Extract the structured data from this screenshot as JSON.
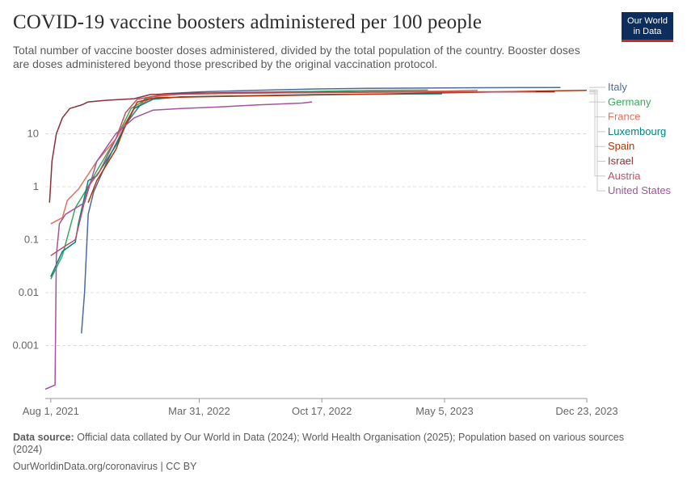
{
  "header": {
    "title": "COVID-19 vaccine boosters administered per 100 people",
    "subtitle": "Total number of vaccine booster doses administered, divided by the total population of the country. Booster doses are doses administered beyond those prescribed by the original vaccination protocol.",
    "logo_line1": "Our World",
    "logo_line2": "in Data"
  },
  "footer": {
    "source_label": "Data source:",
    "source_text": "Official data collated by Our World in Data (2024); World Health Organisation (2025); Population based on various sources (2024)",
    "url_text": "OurWorldinData.org/coronavirus | CC BY"
  },
  "chart_data": {
    "type": "line",
    "title": "COVID-19 vaccine boosters administered per 100 people",
    "y_scale": "log",
    "ylim": [
      0.0001,
      100
    ],
    "y_ticks": [
      {
        "value": 0.001,
        "label": "0.001"
      },
      {
        "value": 0.01,
        "label": "0.01"
      },
      {
        "value": 0.1,
        "label": "0.1"
      },
      {
        "value": 1,
        "label": "1"
      },
      {
        "value": 10,
        "label": "10"
      }
    ],
    "x_ticks": [
      {
        "date": "2021-08-01",
        "label": "Aug 1, 2021"
      },
      {
        "date": "2022-03-31",
        "label": "Mar 31, 2022"
      },
      {
        "date": "2022-10-17",
        "label": "Oct 17, 2022"
      },
      {
        "date": "2023-05-05",
        "label": "May 5, 2023"
      },
      {
        "date": "2023-12-23",
        "label": "Dec 23, 2023"
      }
    ],
    "xlim": [
      "2021-07-23",
      "2023-12-23"
    ],
    "grid": true,
    "legend_placement": "right",
    "series": [
      {
        "name": "Italy",
        "color": "#4c6a9c",
        "points": [
          [
            "2021-09-20",
            0.0017
          ],
          [
            "2021-09-25",
            0.01
          ],
          [
            "2021-10-01",
            0.3
          ],
          [
            "2021-10-10",
            0.8
          ],
          [
            "2021-11-01",
            3
          ],
          [
            "2021-12-01",
            15
          ],
          [
            "2022-01-01",
            45
          ],
          [
            "2022-02-01",
            57
          ],
          [
            "2022-04-01",
            62
          ],
          [
            "2022-07-01",
            66
          ],
          [
            "2022-10-01",
            70
          ],
          [
            "2023-01-01",
            72
          ],
          [
            "2023-06-01",
            74
          ],
          [
            "2023-11-10",
            75
          ]
        ]
      },
      {
        "name": "Germany",
        "color": "#38aa5b",
        "points": [
          [
            "2021-08-01",
            0.018
          ],
          [
            "2021-08-20",
            0.05
          ],
          [
            "2021-09-10",
            0.4
          ],
          [
            "2021-10-01",
            1
          ],
          [
            "2021-10-15",
            2
          ],
          [
            "2021-11-15",
            8
          ],
          [
            "2021-12-10",
            30
          ],
          [
            "2022-01-10",
            50
          ],
          [
            "2022-03-01",
            57
          ],
          [
            "2022-06-01",
            60
          ],
          [
            "2022-10-01",
            63
          ],
          [
            "2023-01-01",
            66
          ],
          [
            "2023-04-08",
            67
          ]
        ]
      },
      {
        "name": "France",
        "color": "#e56e5a",
        "points": [
          [
            "2021-08-01",
            0.2
          ],
          [
            "2021-08-20",
            0.26
          ],
          [
            "2021-08-28",
            0.55
          ],
          [
            "2021-09-15",
            0.9
          ],
          [
            "2021-10-15",
            3
          ],
          [
            "2021-11-15",
            8
          ],
          [
            "2021-12-15",
            30
          ],
          [
            "2022-01-15",
            50
          ],
          [
            "2022-03-01",
            56
          ],
          [
            "2022-06-01",
            58
          ],
          [
            "2022-10-01",
            60
          ],
          [
            "2023-01-01",
            62
          ],
          [
            "2023-05-01",
            64
          ],
          [
            "2023-06-28",
            66
          ]
        ]
      },
      {
        "name": "Luxembourg",
        "color": "#00847e",
        "points": [
          [
            "2021-08-01",
            0.02
          ],
          [
            "2021-08-20",
            0.06
          ],
          [
            "2021-09-10",
            0.09
          ],
          [
            "2021-09-15",
            0.2
          ],
          [
            "2021-10-01",
            1.3
          ],
          [
            "2021-10-15",
            1.6
          ],
          [
            "2021-11-15",
            6
          ],
          [
            "2021-12-15",
            30
          ],
          [
            "2022-01-15",
            45
          ],
          [
            "2022-03-01",
            50
          ],
          [
            "2022-06-01",
            52
          ],
          [
            "2022-10-01",
            55
          ],
          [
            "2023-01-01",
            56
          ],
          [
            "2023-05-01",
            57
          ]
        ]
      },
      {
        "name": "Spain",
        "color": "#b13507",
        "points": [
          [
            "2021-10-01",
            0.5
          ],
          [
            "2021-10-15",
            1.3
          ],
          [
            "2021-11-15",
            5
          ],
          [
            "2021-12-01",
            15
          ],
          [
            "2021-12-20",
            40
          ],
          [
            "2022-01-20",
            48
          ],
          [
            "2022-04-01",
            50
          ],
          [
            "2022-07-01",
            52
          ],
          [
            "2022-10-01",
            54
          ],
          [
            "2023-01-01",
            56
          ],
          [
            "2023-06-01",
            60
          ],
          [
            "2023-10-01",
            64
          ],
          [
            "2023-12-23",
            66
          ]
        ]
      },
      {
        "name": "Israel",
        "color": "#883039",
        "points": [
          [
            "2021-07-30",
            0.5
          ],
          [
            "2021-08-03",
            3
          ],
          [
            "2021-08-10",
            10
          ],
          [
            "2021-08-20",
            20
          ],
          [
            "2021-09-01",
            30
          ],
          [
            "2021-09-20",
            35
          ],
          [
            "2021-10-01",
            40
          ],
          [
            "2021-11-01",
            43
          ],
          [
            "2021-12-15",
            46
          ],
          [
            "2022-01-10",
            55
          ],
          [
            "2022-03-01",
            58
          ],
          [
            "2022-06-01",
            60
          ],
          [
            "2022-10-01",
            61
          ],
          [
            "2023-01-01",
            62
          ],
          [
            "2023-06-01",
            62
          ],
          [
            "2023-11-01",
            62
          ]
        ]
      },
      {
        "name": "Austria",
        "color": "#c15065",
        "points": [
          [
            "2021-08-01",
            0.05
          ],
          [
            "2021-08-20",
            0.07
          ],
          [
            "2021-09-10",
            0.1
          ],
          [
            "2021-10-01",
            1
          ],
          [
            "2021-10-20",
            2
          ],
          [
            "2021-11-15",
            8
          ],
          [
            "2021-12-01",
            25
          ],
          [
            "2021-12-20",
            45
          ],
          [
            "2022-02-01",
            55
          ],
          [
            "2022-05-01",
            58
          ],
          [
            "2022-10-01",
            60
          ],
          [
            "2023-01-01",
            61
          ],
          [
            "2023-06-01",
            62
          ],
          [
            "2023-10-01",
            62
          ]
        ]
      },
      {
        "name": "United States",
        "color": "#a2559c",
        "points": [
          [
            "2021-07-23",
            0.00015
          ],
          [
            "2021-08-08",
            0.00018
          ],
          [
            "2021-08-10",
            0.05
          ],
          [
            "2021-08-15",
            0.2
          ],
          [
            "2021-08-25",
            0.3
          ],
          [
            "2021-09-25",
            0.5
          ],
          [
            "2021-10-15",
            3
          ],
          [
            "2021-11-15",
            10
          ],
          [
            "2021-12-15",
            20
          ],
          [
            "2022-01-15",
            28
          ],
          [
            "2022-03-01",
            30
          ],
          [
            "2022-05-01",
            32
          ],
          [
            "2022-07-01",
            35
          ],
          [
            "2022-09-15",
            38
          ],
          [
            "2022-10-01",
            40
          ]
        ]
      }
    ]
  }
}
